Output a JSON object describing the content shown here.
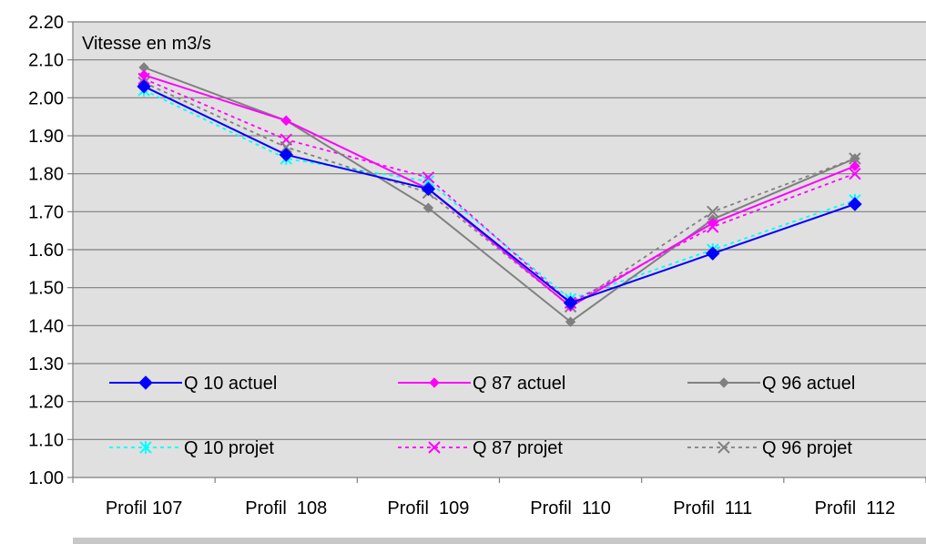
{
  "chart_data": {
    "type": "line",
    "title": "",
    "annotation": "Vitesse en m3/s",
    "xlabel": "",
    "ylabel": "",
    "categories": [
      "Profil 107",
      "Profil  108",
      "Profil  109",
      "Profil  110",
      "Profil  111",
      "Profil  112"
    ],
    "ylim": [
      1.0,
      2.2
    ],
    "ytick_step": 0.1,
    "yticks": [
      "1.00",
      "1.10",
      "1.20",
      "1.30",
      "1.40",
      "1.50",
      "1.60",
      "1.70",
      "1.80",
      "1.90",
      "2.00",
      "2.10",
      "2.20"
    ],
    "grid": true,
    "legend_position": "bottom-inside",
    "plot_background": "#e0e0e0",
    "series": [
      {
        "name": "Q 10 actuel",
        "values": [
          2.03,
          1.85,
          1.76,
          1.46,
          1.59,
          1.72
        ],
        "color": "#0000ff",
        "style": "solid",
        "marker": "diamond",
        "marker_size": 7
      },
      {
        "name": "Q 87 actuel",
        "values": [
          2.06,
          1.94,
          1.76,
          1.45,
          1.67,
          1.82
        ],
        "color": "#ff00ff",
        "style": "solid",
        "marker": "diamond",
        "marker_size": 5
      },
      {
        "name": "Q 96 actuel",
        "values": [
          2.08,
          1.94,
          1.71,
          1.41,
          1.68,
          1.84
        ],
        "color": "#808080",
        "style": "solid",
        "marker": "diamond",
        "marker_size": 5
      },
      {
        "name": "Q 10 projet",
        "values": [
          2.02,
          1.84,
          1.78,
          1.47,
          1.6,
          1.73
        ],
        "color": "#00ffff",
        "style": "dotted",
        "marker": "asterisk"
      },
      {
        "name": "Q 87 projet",
        "values": [
          2.05,
          1.89,
          1.79,
          1.46,
          1.66,
          1.8
        ],
        "color": "#ff00ff",
        "style": "dotted",
        "marker": "x"
      },
      {
        "name": "Q 96 projet",
        "values": [
          2.04,
          1.87,
          1.75,
          1.45,
          1.7,
          1.84
        ],
        "color": "#808080",
        "style": "dotted",
        "marker": "x"
      }
    ]
  }
}
